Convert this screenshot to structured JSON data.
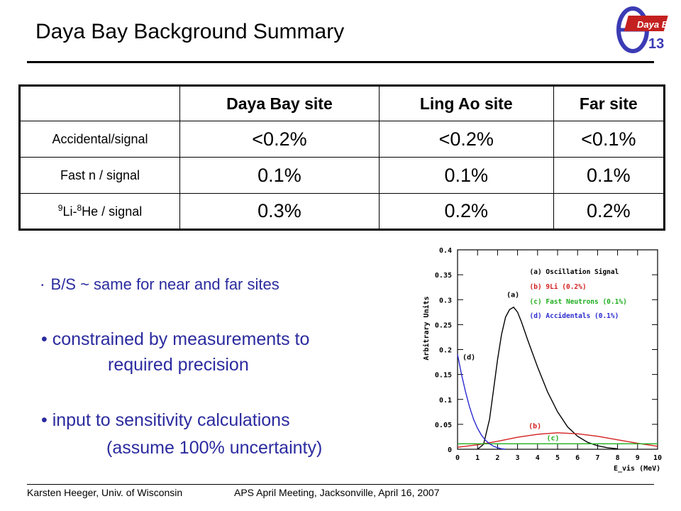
{
  "title": "Daya Bay Background Summary",
  "logo": {
    "text": "Daya Bay",
    "sub": "13"
  },
  "table": {
    "headers": [
      "",
      "Daya Bay site",
      "Ling Ao site",
      "Far site"
    ],
    "rows": [
      {
        "label": "Accidental/signal",
        "values": [
          "<0.2%",
          "<0.2%",
          "<0.1%"
        ]
      },
      {
        "label": "Fast n / signal",
        "values": [
          "0.1%",
          "0.1%",
          "0.1%"
        ]
      },
      {
        "label_parts": {
          "sup1": "9",
          "a": "Li-",
          "sup2": "8",
          "b": "He / signal"
        },
        "values": [
          "0.3%",
          "0.2%",
          "0.2%"
        ]
      }
    ]
  },
  "bullets": {
    "b1": "B/S ~ same for near and far sites",
    "b2": "• constrained by measurements to",
    "b2b": "required precision",
    "b3": "•  input to sensitivity calculations",
    "b3b": "(assume 100% uncertainty)"
  },
  "chart_data": {
    "type": "line",
    "ylabel": "Arbitrary Units",
    "xlabel": "E_vis (MeV)",
    "xlim": [
      0,
      10
    ],
    "ylim": [
      0,
      0.4
    ],
    "xticks": [
      "0",
      "1",
      "2",
      "3",
      "4",
      "5",
      "6",
      "7",
      "8",
      "9",
      "10"
    ],
    "yticks": [
      "0",
      "0.05",
      "0.1",
      "0.15",
      "0.2",
      "0.25",
      "0.3",
      "0.35",
      "0.4"
    ],
    "legend": [
      {
        "text": "(a) Oscillation Signal",
        "color": "#000000"
      },
      {
        "text": "(b) 9Li (0.2%)",
        "color": "#d42020"
      },
      {
        "text": "(c) Fast Neutrons (0.1%)",
        "color": "#1fae1f"
      },
      {
        "text": "(d) Accidentals (0.1%)",
        "color": "#2a2ad0"
      }
    ],
    "annotations": [
      "(a)",
      "(b)",
      "(c)",
      "(d)"
    ],
    "series": [
      {
        "name": "(a) Oscillation Signal",
        "color": "#000000",
        "x": [
          1.0,
          1.3,
          1.6,
          1.8,
          2.0,
          2.2,
          2.4,
          2.6,
          2.8,
          3.0,
          3.2,
          3.5,
          4.0,
          4.5,
          5.0,
          5.5,
          6.0,
          6.5,
          7.0,
          7.5,
          8.0
        ],
        "y": [
          0,
          0.01,
          0.06,
          0.12,
          0.18,
          0.23,
          0.265,
          0.28,
          0.285,
          0.275,
          0.255,
          0.22,
          0.165,
          0.115,
          0.075,
          0.045,
          0.026,
          0.014,
          0.007,
          0.003,
          0.001
        ]
      },
      {
        "name": "(b) 9Li (0.2%)",
        "color": "#d42020",
        "x": [
          0,
          1,
          2,
          3,
          4,
          5,
          6,
          7,
          8,
          9,
          10
        ],
        "y": [
          0.004,
          0.009,
          0.016,
          0.024,
          0.03,
          0.033,
          0.031,
          0.026,
          0.019,
          0.012,
          0.006
        ]
      },
      {
        "name": "(c) Fast Neutrons (0.1%)",
        "color": "#1fae1f",
        "x": [
          0,
          10
        ],
        "y": [
          0.011,
          0.011
        ]
      },
      {
        "name": "(d) Accidentals (0.1%)",
        "color": "#2a2ad0",
        "x": [
          0,
          0.2,
          0.4,
          0.6,
          0.8,
          1.0,
          1.2,
          1.4,
          1.6,
          1.8,
          2.0,
          2.2,
          2.4
        ],
        "y": [
          0.19,
          0.15,
          0.115,
          0.085,
          0.06,
          0.042,
          0.028,
          0.018,
          0.011,
          0.006,
          0.003,
          0.001,
          0
        ]
      }
    ]
  },
  "footer": {
    "left": "Karsten Heeger, Univ. of Wisconsin",
    "right": "APS April Meeting, Jacksonville, April 16, 2007"
  }
}
